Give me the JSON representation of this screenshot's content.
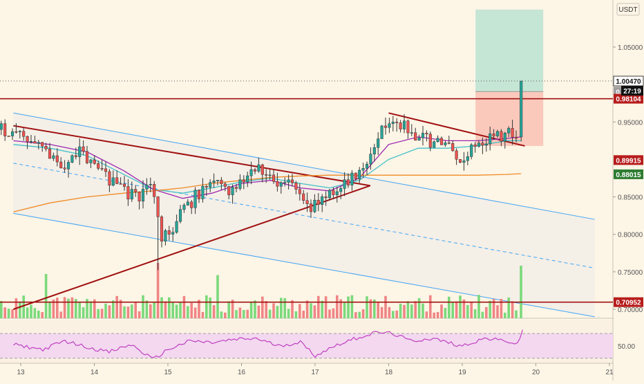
{
  "currency_badge": "USDT",
  "countdown": "27:19",
  "colors": {
    "background": "#fdf5e6",
    "up": "#26a69a",
    "down": "#ef5350",
    "volume_up": "#7bd97b",
    "volume_down": "#f08585",
    "trendline": "#a01010",
    "channel": "#42a5f5",
    "ma_cyan": "#40c0c8",
    "ma_purple": "#9c27b0",
    "ma_orange": "#f08a24",
    "rsi": "#c040c0",
    "target_zone": "#b2dfcf",
    "stop_zone": "#f8b9ad"
  },
  "chart_data": {
    "type": "candlestick",
    "x_axis": {
      "ticks": [
        "13",
        "14",
        "15",
        "16",
        "17",
        "18",
        "19",
        "20",
        "21"
      ]
    },
    "y_axis": {
      "range": [
        0.69,
        1.08
      ],
      "ticks": [
        "1.05000",
        "0.95000",
        "0.85000",
        "0.80000",
        "0.75000",
        "0.70000"
      ]
    },
    "price_labels": [
      {
        "value": 1.0047,
        "label": "1.00470",
        "style": "last-price"
      },
      {
        "value": 0.99053,
        "label": "0.99053",
        "style": "grey"
      },
      {
        "value": 0.98104,
        "label": "0.98104",
        "style": "red"
      },
      {
        "value": 0.89915,
        "label": "0.89915",
        "style": "red"
      },
      {
        "value": 0.88015,
        "label": "0.88015",
        "style": "green"
      },
      {
        "value": 0.70952,
        "label": "0.70952",
        "style": "red"
      }
    ],
    "price_keypoints": [
      {
        "day": 12.9,
        "price": 0.94
      },
      {
        "day": 13.2,
        "price": 0.918
      },
      {
        "day": 13.5,
        "price": 0.89
      },
      {
        "day": 13.8,
        "price": 0.912
      },
      {
        "day": 14.1,
        "price": 0.88
      },
      {
        "day": 14.35,
        "price": 0.862
      },
      {
        "day": 14.6,
        "price": 0.845
      },
      {
        "day": 14.75,
        "price": 0.875
      },
      {
        "day": 14.88,
        "price": 0.795
      },
      {
        "day": 14.98,
        "price": 0.8
      },
      {
        "day": 15.15,
        "price": 0.825
      },
      {
        "day": 15.35,
        "price": 0.85
      },
      {
        "day": 15.6,
        "price": 0.87
      },
      {
        "day": 15.8,
        "price": 0.86
      },
      {
        "day": 16.0,
        "price": 0.875
      },
      {
        "day": 16.2,
        "price": 0.895
      },
      {
        "day": 16.45,
        "price": 0.86
      },
      {
        "day": 16.7,
        "price": 0.87
      },
      {
        "day": 16.95,
        "price": 0.835
      },
      {
        "day": 17.15,
        "price": 0.855
      },
      {
        "day": 17.4,
        "price": 0.865
      },
      {
        "day": 17.65,
        "price": 0.89
      },
      {
        "day": 17.85,
        "price": 0.935
      },
      {
        "day": 18.05,
        "price": 0.955
      },
      {
        "day": 18.3,
        "price": 0.935
      },
      {
        "day": 18.5,
        "price": 0.925
      },
      {
        "day": 18.75,
        "price": 0.92
      },
      {
        "day": 18.95,
        "price": 0.895
      },
      {
        "day": 19.2,
        "price": 0.925
      },
      {
        "day": 19.45,
        "price": 0.93
      },
      {
        "day": 19.62,
        "price": 0.935
      },
      {
        "day": 19.75,
        "price": 0.93
      },
      {
        "day": 19.8,
        "price": 1.0047
      }
    ],
    "moving_averages": [
      {
        "color": "ma_cyan",
        "points": [
          [
            12.9,
            0.92
          ],
          [
            13.4,
            0.915
          ],
          [
            13.9,
            0.905
          ],
          [
            14.4,
            0.88
          ],
          [
            14.8,
            0.86
          ],
          [
            15.2,
            0.855
          ],
          [
            15.6,
            0.862
          ],
          [
            16.0,
            0.87
          ],
          [
            16.4,
            0.875
          ],
          [
            16.8,
            0.868
          ],
          [
            17.2,
            0.862
          ],
          [
            17.6,
            0.872
          ],
          [
            18.0,
            0.9
          ],
          [
            18.4,
            0.915
          ],
          [
            18.8,
            0.915
          ],
          [
            19.2,
            0.918
          ],
          [
            19.6,
            0.925
          ],
          [
            19.8,
            0.925
          ]
        ]
      },
      {
        "color": "ma_purple",
        "points": [
          [
            12.9,
            0.925
          ],
          [
            13.4,
            0.92
          ],
          [
            13.9,
            0.91
          ],
          [
            14.4,
            0.885
          ],
          [
            14.8,
            0.86
          ],
          [
            15.2,
            0.848
          ],
          [
            15.6,
            0.855
          ],
          [
            16.0,
            0.868
          ],
          [
            16.4,
            0.872
          ],
          [
            16.8,
            0.862
          ],
          [
            17.2,
            0.858
          ],
          [
            17.6,
            0.875
          ],
          [
            18.0,
            0.92
          ],
          [
            18.4,
            0.93
          ],
          [
            18.8,
            0.925
          ],
          [
            19.2,
            0.925
          ],
          [
            19.6,
            0.928
          ],
          [
            19.8,
            0.93
          ]
        ]
      },
      {
        "color": "ma_orange",
        "points": [
          [
            12.9,
            0.83
          ],
          [
            13.4,
            0.842
          ],
          [
            13.9,
            0.85
          ],
          [
            14.4,
            0.855
          ],
          [
            14.8,
            0.858
          ],
          [
            15.2,
            0.862
          ],
          [
            15.6,
            0.868
          ],
          [
            16.0,
            0.872
          ],
          [
            16.4,
            0.876
          ],
          [
            16.8,
            0.878
          ],
          [
            17.2,
            0.879
          ],
          [
            17.6,
            0.879
          ],
          [
            18.0,
            0.879
          ],
          [
            18.4,
            0.879
          ],
          [
            18.8,
            0.879
          ],
          [
            19.2,
            0.879
          ],
          [
            19.6,
            0.88
          ],
          [
            19.8,
            0.881
          ]
        ]
      }
    ],
    "trendlines": [
      {
        "kind": "horizontal",
        "price": 0.98104,
        "color": "trendline"
      },
      {
        "kind": "horizontal",
        "price": 0.70952,
        "color": "trendline"
      },
      {
        "kind": "segment",
        "from": [
          12.9,
          0.945
        ],
        "to": [
          17.75,
          0.865
        ],
        "color": "trendline"
      },
      {
        "kind": "segment",
        "from": [
          12.9,
          0.7
        ],
        "to": [
          17.75,
          0.865
        ],
        "color": "trendline"
      },
      {
        "kind": "segment",
        "from": [
          18.0,
          0.962
        ],
        "to": [
          19.85,
          0.918
        ],
        "color": "trendline"
      }
    ],
    "channel": {
      "upper": {
        "from": [
          12.9,
          0.962
        ],
        "to": [
          20.8,
          0.82
        ]
      },
      "middle": {
        "from": [
          12.9,
          0.895
        ],
        "to": [
          20.8,
          0.755
        ]
      },
      "lower": {
        "from": [
          12.9,
          0.828
        ],
        "to": [
          20.8,
          0.69
        ]
      }
    },
    "position": {
      "day_start": 19.18,
      "day_end": 20.1,
      "entry": 0.99053,
      "target": 1.1,
      "stop": 0.918
    },
    "volume": {
      "spikes": [
        {
          "day": 13.35,
          "height": 0.8
        },
        {
          "day": 14.85,
          "height": 1.0
        },
        {
          "day": 15.65,
          "height": 0.78
        },
        {
          "day": 19.8,
          "height": 0.95
        }
      ]
    },
    "rsi": {
      "levels": [
        70,
        30
      ],
      "ticks": [
        "50.00"
      ],
      "keypoints": [
        [
          12.9,
          52
        ],
        [
          13.3,
          44
        ],
        [
          13.6,
          58
        ],
        [
          13.9,
          48
        ],
        [
          14.2,
          40
        ],
        [
          14.5,
          52
        ],
        [
          14.8,
          28
        ],
        [
          15.0,
          44
        ],
        [
          15.3,
          58
        ],
        [
          15.6,
          55
        ],
        [
          15.9,
          60
        ],
        [
          16.2,
          62
        ],
        [
          16.5,
          50
        ],
        [
          16.8,
          56
        ],
        [
          17.0,
          34
        ],
        [
          17.3,
          52
        ],
        [
          17.6,
          64
        ],
        [
          17.85,
          72
        ],
        [
          18.05,
          70
        ],
        [
          18.3,
          58
        ],
        [
          18.6,
          62
        ],
        [
          18.85,
          54
        ],
        [
          19.0,
          50
        ],
        [
          19.3,
          62
        ],
        [
          19.6,
          58
        ],
        [
          19.75,
          52
        ],
        [
          19.82,
          76
        ]
      ]
    }
  }
}
